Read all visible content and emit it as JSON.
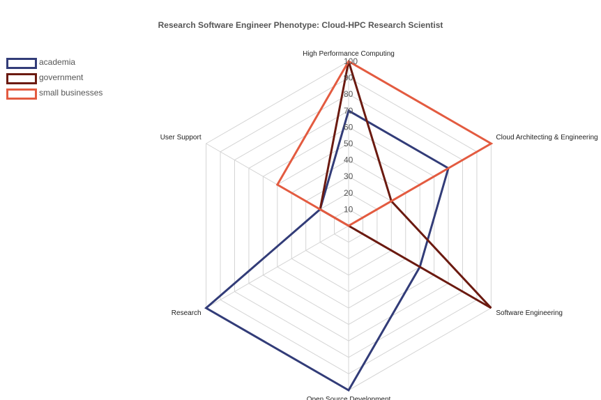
{
  "title": "Research Software Engineer Phenotype: Cloud-HPC Research Scientist",
  "chart_data": {
    "type": "radar",
    "title": "Research Software Engineer Phenotype: Cloud-HPC Research Scientist",
    "axes": [
      "High Performance Computing",
      "Cloud Architecting & Engineering",
      "Software Engineering",
      "Open Source Development",
      "Research",
      "User Support"
    ],
    "rlim": [
      0,
      100
    ],
    "rticks": [
      "10",
      "20",
      "30",
      "40",
      "50",
      "60",
      "70",
      "80",
      "90",
      "100"
    ],
    "grid": true,
    "legend_position": "top-left",
    "series": [
      {
        "name": "academia",
        "color": "#323c78",
        "values": [
          70,
          70,
          50,
          100,
          100,
          20
        ]
      },
      {
        "name": "government",
        "color": "#6b1a10",
        "values": [
          100,
          30,
          100,
          0,
          0,
          20
        ]
      },
      {
        "name": "small businesses",
        "color": "#e35b40",
        "values": [
          100,
          100,
          0,
          0,
          0,
          50
        ]
      }
    ]
  }
}
